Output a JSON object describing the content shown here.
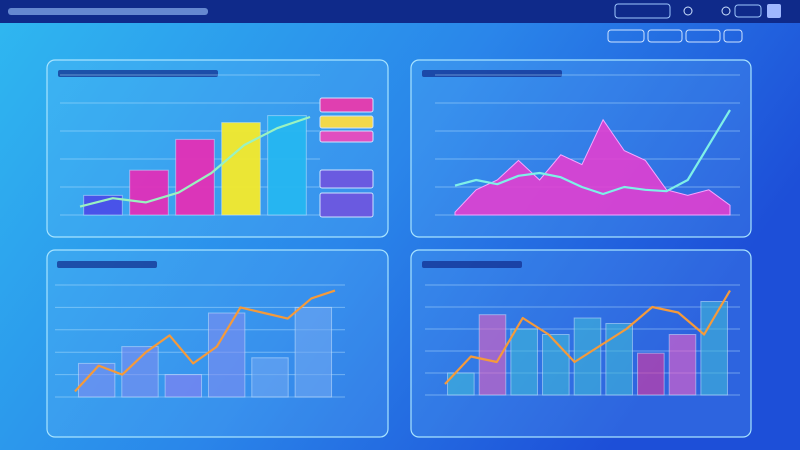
{
  "chart_data": [
    {
      "type": "combo",
      "ylim": [
        0,
        100
      ],
      "yticks": [
        0,
        20,
        40,
        60,
        80,
        100
      ],
      "grid": true,
      "series": [
        {
          "type": "bar",
          "colors": [
            "#4a4ee8",
            "#e02fb8",
            "#e42fb5",
            "#f4ea2a",
            "#25b6f0"
          ],
          "values": [
            14,
            32,
            54,
            66,
            71
          ]
        },
        {
          "type": "line",
          "color": "#9af2c0",
          "values": [
            6,
            12,
            9,
            16,
            30,
            50,
            62,
            70
          ]
        }
      ]
    },
    {
      "type": "combo",
      "ylim": [
        0,
        100
      ],
      "yticks": [
        0,
        20,
        40,
        60,
        80,
        100
      ],
      "grid": true,
      "series": [
        {
          "type": "area",
          "color": "#e23fd0",
          "values": [
            2,
            18,
            25,
            39,
            25,
            43,
            36,
            68,
            46,
            39,
            18,
            14,
            18,
            7
          ]
        },
        {
          "type": "line",
          "color": "#7ff0e8",
          "values": [
            21,
            25,
            22,
            28,
            30,
            27,
            20,
            15,
            20,
            18,
            17,
            25,
            50,
            75
          ]
        }
      ]
    },
    {
      "type": "combo",
      "ylim": [
        0,
        100
      ],
      "yticks": [
        0,
        20,
        40,
        60,
        80,
        100
      ],
      "grid": true,
      "series": [
        {
          "type": "bar",
          "colors": [
            "#7f8cf0",
            "#7f8cf0",
            "#8e7ef2",
            "#7f8cf0",
            "#6fa6f2",
            "#6fa6f2"
          ],
          "values": [
            30,
            45,
            20,
            75,
            35,
            80
          ]
        },
        {
          "type": "line",
          "color": "#f59a3a",
          "values": [
            5,
            28,
            20,
            40,
            55,
            30,
            45,
            80,
            75,
            70,
            88,
            95
          ]
        }
      ]
    },
    {
      "type": "combo",
      "ylim": [
        0,
        100
      ],
      "yticks": [
        0,
        20,
        40,
        60,
        80,
        100
      ],
      "grid": true,
      "series": [
        {
          "type": "bar",
          "colors": [
            "#3fb7d8",
            "#e25fc0",
            "#3fb7d8",
            "#3fb7d8",
            "#3fb7d8",
            "#3fb7d8",
            "#e0359f",
            "#ee5fc8",
            "#3fb7d8"
          ],
          "values": [
            20,
            73,
            60,
            55,
            70,
            65,
            38,
            55,
            85
          ]
        },
        {
          "type": "line",
          "color": "#f59a3a",
          "values": [
            10,
            35,
            30,
            70,
            55,
            30,
            45,
            60,
            80,
            75,
            55,
            95
          ]
        }
      ]
    }
  ]
}
